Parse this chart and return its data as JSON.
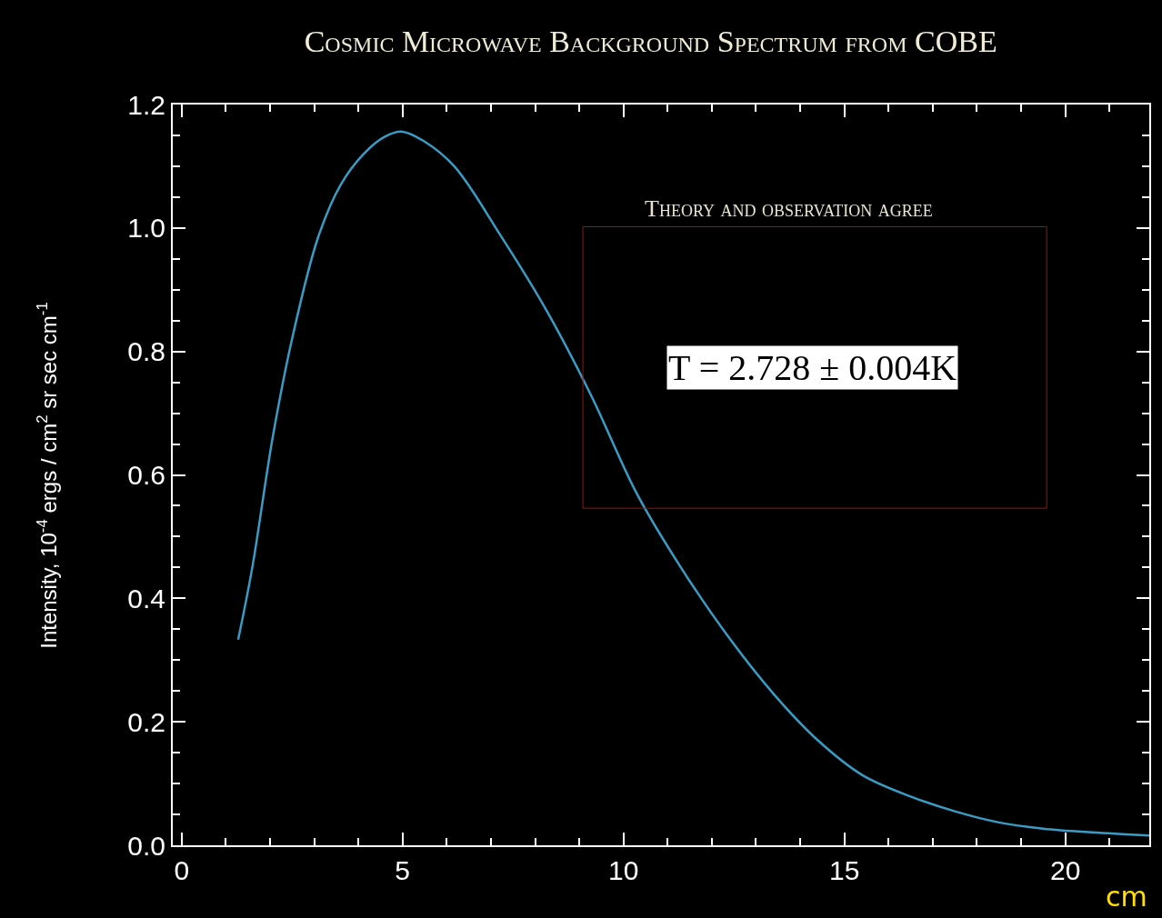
{
  "chart_data": {
    "type": "line",
    "title": "Cosmic Microwave Background Spectrum from COBE",
    "xlabel": "cm",
    "ylabel": "Intensity, 10$^{-4}$ ergs / cm$^{2}$ sr sec cm$^{-1}$",
    "annotations": [
      "Theory and observation agree",
      "T = 2.728 ± 0.004K"
    ],
    "series": [
      {
        "color": "#3a9cc4",
        "x": [
          1.28,
          1.6,
          2.06,
          2.5,
          3.09,
          3.6,
          4.12,
          4.6,
          5.0,
          5.5,
          6.17,
          7.2,
          8.23,
          9.26,
          10.3,
          11.3,
          12.35,
          13.4,
          14.4,
          15.4,
          16.5,
          17.5,
          18.5,
          19.5,
          20.6,
          21.9
        ],
        "values": [
          0.333,
          0.45,
          0.66,
          0.82,
          0.985,
          1.07,
          1.12,
          1.148,
          1.156,
          1.14,
          1.1,
          0.99,
          0.87,
          0.73,
          0.57,
          0.45,
          0.34,
          0.245,
          0.17,
          0.114,
          0.079,
          0.055,
          0.037,
          0.027,
          0.021,
          0.016
        ]
      }
    ],
    "xlim": [
      -0.2,
      21.9
    ],
    "ylim": [
      0,
      1.2
    ],
    "xticks": [
      0,
      5,
      10,
      15,
      20
    ],
    "yticks": [
      {
        "value": 0,
        "label": "0.0"
      },
      {
        "value": 0.2,
        "label": "0.2"
      },
      {
        "value": 0.4,
        "label": "0.4"
      },
      {
        "value": 0.6,
        "label": "0.6"
      },
      {
        "value": 0.8,
        "label": "0.8"
      },
      {
        "value": 1.0,
        "label": "1.0"
      },
      {
        "value": 1.2,
        "label": "1.2"
      }
    ],
    "grid": false,
    "marker": "none",
    "line_style": "solid"
  }
}
